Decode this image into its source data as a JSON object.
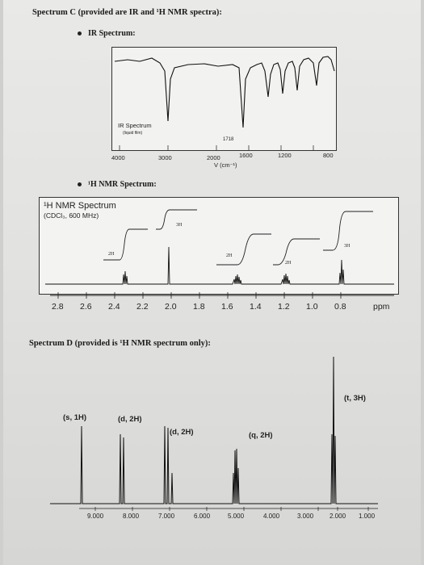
{
  "spectrum_c": {
    "heading": "Spectrum C (provided are IR and ¹H NMR spectra):",
    "ir_bullet": "IR Spectrum:",
    "ir": {
      "label_line1": "IR Spectrum",
      "label_line2": "(liquid film)",
      "peak_label": "1718",
      "axis_label": "V (cm⁻¹)",
      "ticks": [
        "4000",
        "3000",
        "2000",
        "1600",
        "1200",
        "800"
      ]
    },
    "nmr_bullet": "¹H NMR Spectrum:",
    "nmr": {
      "title": "¹H NMR Spectrum",
      "subtitle": "(CDCl₃, 600 MHz)",
      "integrals": [
        "2H",
        "3H",
        "2H",
        "2H",
        "3H"
      ],
      "ticks": [
        "2.8",
        "2.6",
        "2.4",
        "2.2",
        "2.0",
        "1.8",
        "1.6",
        "1.4",
        "1.2",
        "1.0",
        "0.8"
      ],
      "unit": "ppm"
    }
  },
  "spectrum_d": {
    "heading": "Spectrum D (provided is ¹H NMR spectrum only):",
    "labels": [
      "(s, 1H)",
      "(d, 2H)",
      "(d, 2H)",
      "(q, 2H)",
      "(t, 3H)"
    ],
    "ticks": [
      "9.000",
      "8.000",
      "7.000",
      "6.000",
      "5.000",
      "4.000",
      "3.000",
      "2.000",
      "1.000"
    ]
  },
  "chart_data": [
    {
      "type": "line",
      "xlabel": "V (cm⁻¹)",
      "x_ticks": [
        4000,
        3000,
        2000,
        1600,
        1200,
        800
      ],
      "annotations": [
        "IR Spectrum",
        "(liquid film)",
        "1718"
      ],
      "peaks_cm1": [
        2960,
        2930,
        1718,
        1460,
        1370,
        1230,
        1160,
        1100
      ]
    },
    {
      "type": "line",
      "title": "¹H NMR Spectrum",
      "subtitle": "(CDCl₃, 600 MHz)",
      "xlabel": "ppm",
      "xlim": [
        2.9,
        0.7
      ],
      "x_ticks": [
        2.8,
        2.6,
        2.4,
        2.2,
        2.0,
        1.8,
        1.6,
        1.4,
        1.2,
        1.0,
        0.8
      ],
      "peaks_ppm": [
        2.4,
        2.1,
        1.6,
        1.3,
        0.9
      ],
      "integrals": [
        "2H",
        "3H",
        "2H",
        "2H",
        "3H"
      ]
    },
    {
      "type": "line",
      "xlabel": "",
      "x_ticks": [
        9.0,
        8.0,
        7.0,
        6.0,
        5.0,
        4.0,
        3.0,
        2.0,
        1.0
      ],
      "peaks_ppm": [
        9.8,
        9.0,
        7.0,
        4.8,
        2.0
      ],
      "peak_labels": [
        "(s, 1H)",
        "(d, 2H)",
        "(d, 2H)",
        "(q, 2H)",
        "(t, 3H)"
      ]
    }
  ]
}
